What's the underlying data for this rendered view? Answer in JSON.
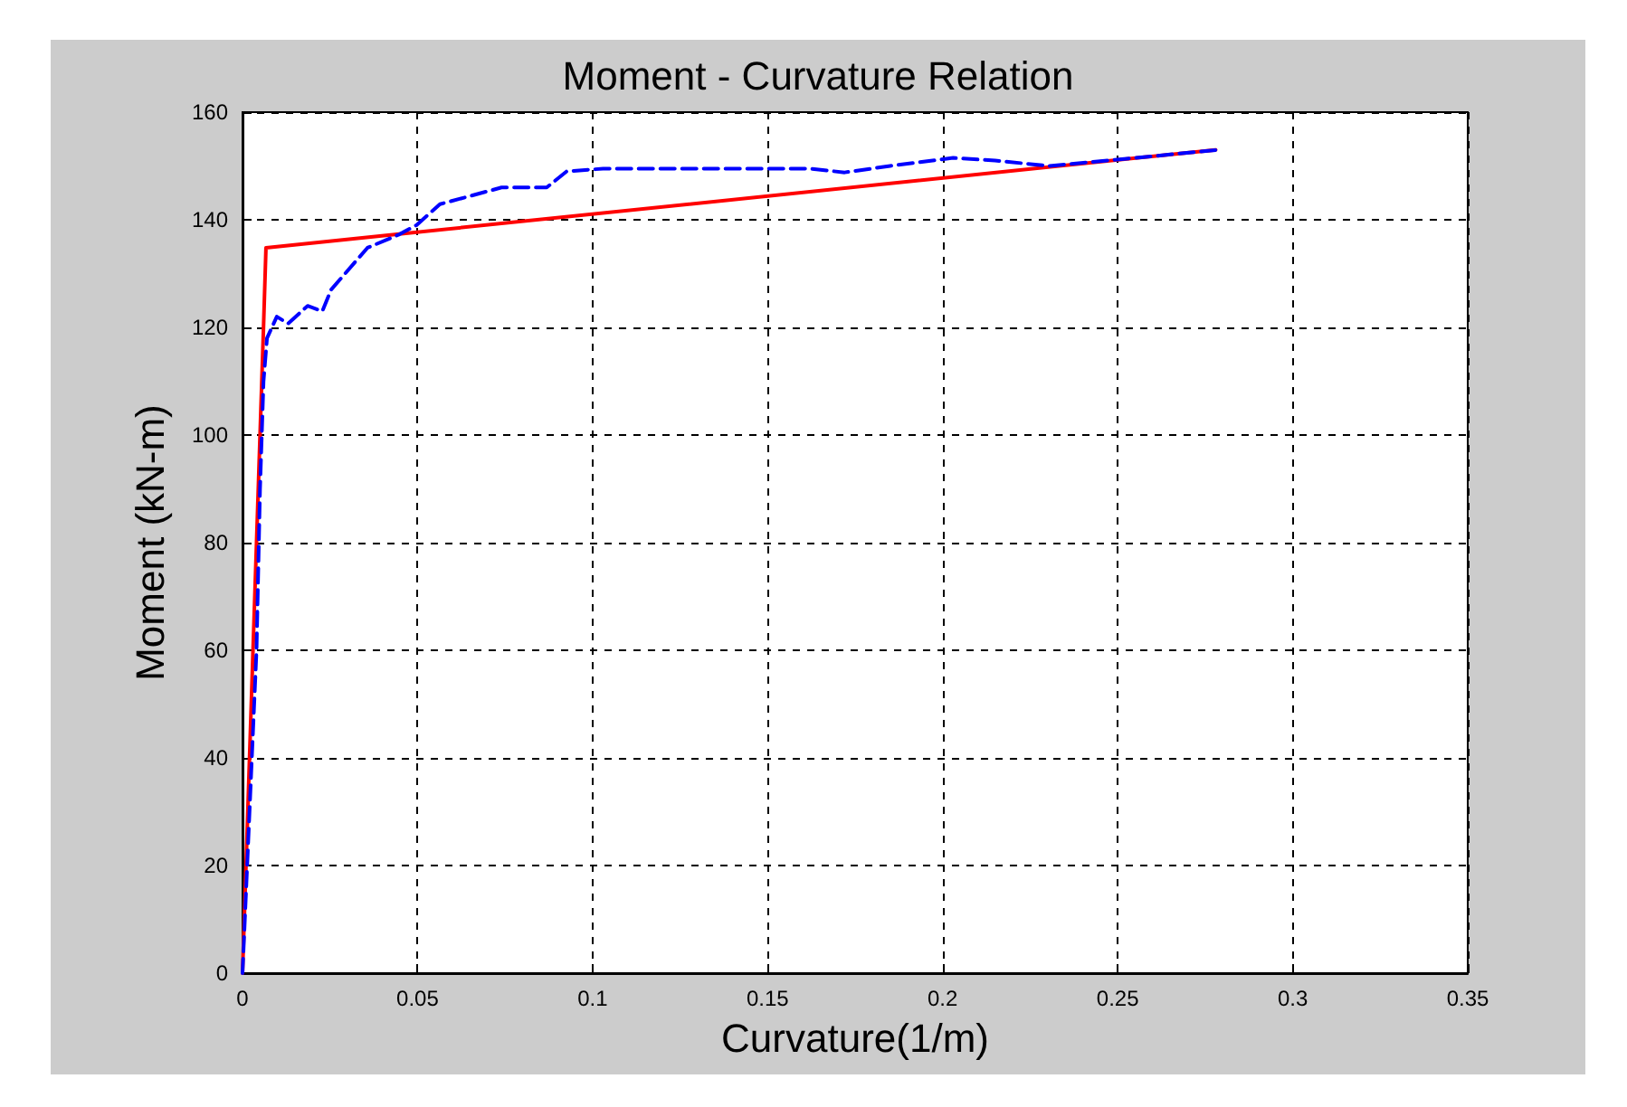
{
  "chart_data": {
    "type": "line",
    "title": "Moment - Curvature Relation",
    "xlabel": "Curvature(1/m)",
    "ylabel": "Moment (kN-m)",
    "xlim": [
      0,
      0.35
    ],
    "xticks": [
      0,
      0.05,
      0.1,
      0.15,
      0.2,
      0.25,
      0.3,
      0.35
    ],
    "ylim": [
      0,
      160
    ],
    "yticks": [
      0,
      20,
      40,
      60,
      80,
      100,
      120,
      140,
      160
    ],
    "grid": true,
    "marker": "none",
    "series": [
      {
        "color": "#ff0000",
        "line_style": "solid",
        "x": [
          0,
          0.006,
          0.0067,
          0.278
        ],
        "values": [
          0,
          120,
          134.8,
          153
        ]
      },
      {
        "color": "#0000ff",
        "line_style": "dashed",
        "x": [
          0,
          0.002,
          0.004,
          0.005,
          0.006,
          0.007,
          0.0098,
          0.013,
          0.0186,
          0.0228,
          0.0253,
          0.0357,
          0.0445,
          0.0497,
          0.0564,
          0.074,
          0.0869,
          0.0926,
          0.103,
          0.162,
          0.172,
          0.185,
          0.203,
          0.215,
          0.2305,
          0.255,
          0.2787
        ],
        "values": [
          0,
          30,
          60,
          90,
          110,
          118,
          122,
          120.7,
          124,
          123,
          127,
          134.8,
          137.2,
          139,
          142.9,
          146,
          146,
          149,
          149.5,
          149.5,
          148.8,
          150,
          151.5,
          151,
          150,
          151.5,
          153
        ]
      }
    ]
  }
}
